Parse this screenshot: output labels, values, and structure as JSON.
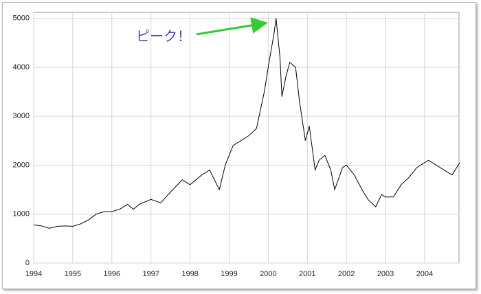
{
  "chart_data": {
    "type": "line",
    "annotation": "ピーク！",
    "x": [
      1994.0,
      1994.2,
      1994.4,
      1994.6,
      1994.8,
      1995.0,
      1995.2,
      1995.4,
      1995.6,
      1995.8,
      1996.0,
      1996.2,
      1996.4,
      1996.55,
      1996.7,
      1997.0,
      1997.25,
      1997.5,
      1997.8,
      1998.0,
      1998.3,
      1998.5,
      1998.75,
      1998.9,
      1999.1,
      1999.3,
      1999.5,
      1999.7,
      1999.9,
      2000.0,
      2000.15,
      2000.2,
      2000.3,
      2000.35,
      2000.45,
      2000.55,
      2000.7,
      2000.8,
      2000.95,
      2001.05,
      2001.2,
      2001.3,
      2001.45,
      2001.6,
      2001.7,
      2001.9,
      2002.0,
      2002.2,
      2002.4,
      2002.55,
      2002.75,
      2002.9,
      2003.0,
      2003.2,
      2003.4,
      2003.6,
      2003.8,
      2004.0,
      2004.1,
      2004.3,
      2004.5,
      2004.7,
      2004.9
    ],
    "series": [
      {
        "color": "#000000",
        "values": [
          780,
          760,
          710,
          750,
          760,
          750,
          800,
          880,
          1000,
          1050,
          1050,
          1100,
          1200,
          1100,
          1200,
          1300,
          1230,
          1450,
          1700,
          1600,
          1800,
          1900,
          1500,
          2000,
          2400,
          2500,
          2600,
          2750,
          3500,
          4000,
          4700,
          5000,
          4200,
          3400,
          3800,
          4100,
          4000,
          3300,
          2500,
          2800,
          1900,
          2100,
          2200,
          1900,
          1500,
          1950,
          2000,
          1800,
          1500,
          1300,
          1150,
          1400,
          1350,
          1350,
          1600,
          1750,
          1950,
          2050,
          2100,
          2000,
          1900,
          1800,
          2050
        ]
      }
    ],
    "xlim": [
      1994,
      2004.88
    ],
    "xticks": [
      1994,
      1995,
      1996,
      1997,
      1998,
      1999,
      2000,
      2001,
      2002,
      2003,
      2004
    ],
    "ylim": [
      0,
      5120
    ],
    "yticks": [
      0,
      1000,
      2000,
      3000,
      4000,
      5000
    ],
    "grid": true
  }
}
